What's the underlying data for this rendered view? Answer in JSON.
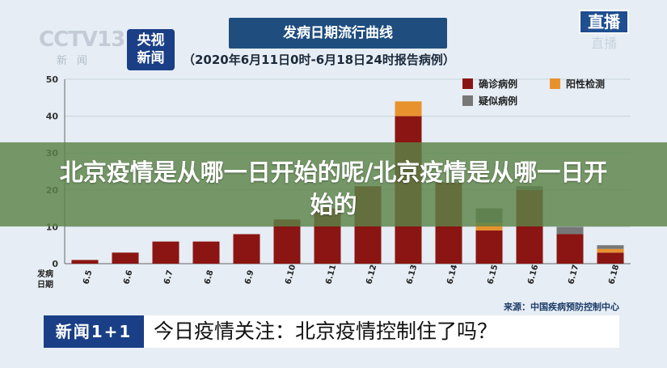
{
  "broadcast": {
    "channel_logo_main": "CCTV13",
    "channel_logo_sub": "新闻",
    "news_badge": "央视新闻",
    "live_badge_top": "直播",
    "live_badge_bottom": "直播",
    "lower_third_tag": "新闻1+1",
    "lower_third_text": "今日疫情关注：北京疫情控制住了吗？"
  },
  "overlay_banner": {
    "text": "北京疫情是从哪一日开始的呢/北京疫情是从哪一日开始的"
  },
  "colors": {
    "confirmed": "#8b1512",
    "positive": "#e8922d",
    "suspected": "#777777",
    "title_bg": "#1e4d7e",
    "banner_bg": "#5c8448"
  },
  "chart_data": {
    "type": "bar",
    "stacked": true,
    "title": "发病日期流行曲线",
    "subtitle": "（2020年6月11日0时-6月18日24时报告病例）",
    "xlabel": "发病日期",
    "ylabel": "",
    "ylim": [
      0,
      50
    ],
    "yticks": [
      0,
      10,
      20,
      30,
      40,
      50
    ],
    "grid": true,
    "legend_position": "top-right",
    "categories": [
      "6.5",
      "6.6",
      "6.7",
      "6.8",
      "6.9",
      "6.10",
      "6.11",
      "6.12",
      "6.13",
      "6.14",
      "6.15",
      "6.16",
      "6.17",
      "6.18"
    ],
    "series": [
      {
        "name": "确诊病例",
        "color": "#8b1512",
        "values": [
          1,
          3,
          6,
          6,
          8,
          12,
          15,
          21,
          40,
          22,
          9,
          20,
          8,
          3
        ]
      },
      {
        "name": "阳性检测",
        "color": "#e8922d",
        "values": [
          0,
          0,
          0,
          0,
          0,
          0,
          0,
          0,
          4,
          0,
          2,
          0,
          0,
          1
        ]
      },
      {
        "name": "疑似病例",
        "color": "#777777",
        "values": [
          0,
          0,
          0,
          0,
          0,
          0,
          0,
          0,
          0,
          0,
          4,
          1,
          2,
          1
        ]
      }
    ],
    "source": "来源：中国疾病预防控制中心"
  }
}
